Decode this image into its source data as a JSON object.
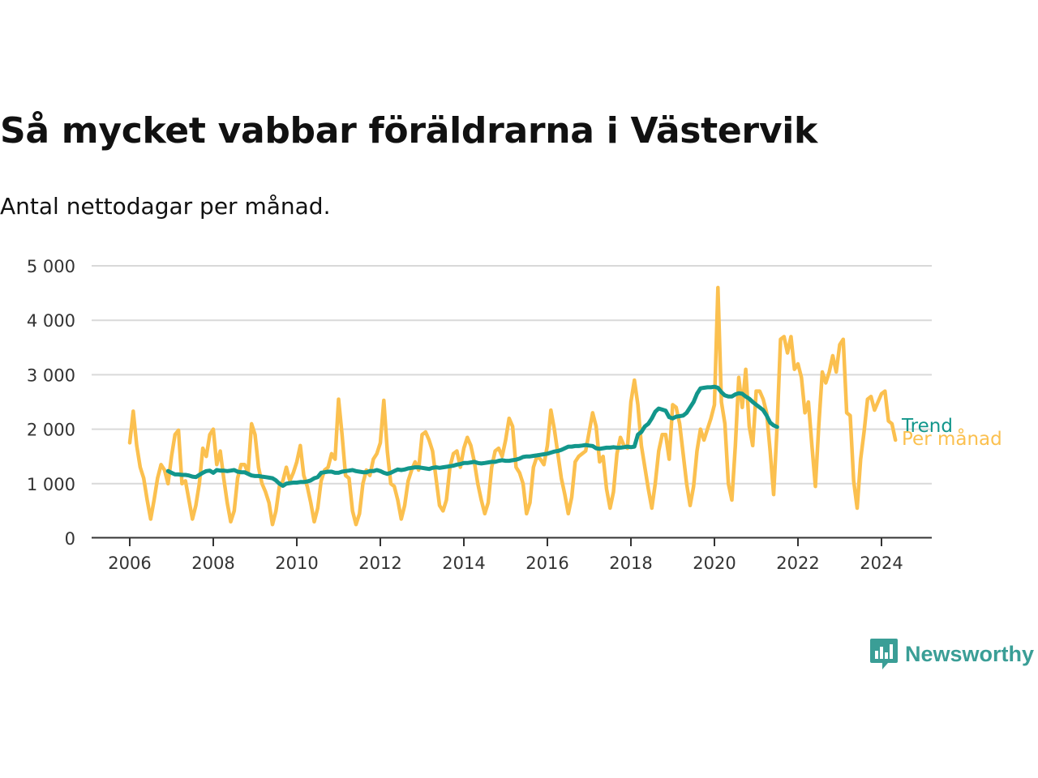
{
  "title": "Så mycket vabbar föräldrarna i Västervik",
  "subtitle": "Antal nettodagar per månad.",
  "logo": {
    "text": "Newsworthy",
    "color": "#3a9e96"
  },
  "colors": {
    "per_month": "#fbc04f",
    "trend": "#12968b",
    "grid": "#d9d9d9",
    "axis": "#333333"
  },
  "chart_data": {
    "type": "line",
    "xlim": [
      2006.0,
      2024.5
    ],
    "ylim": [
      0,
      5000
    ],
    "y_ticks": [
      0,
      1000,
      2000,
      3000,
      4000,
      5000
    ],
    "y_tick_labels": [
      "0",
      "1 000",
      "2 000",
      "3 000",
      "4 000",
      "5 000"
    ],
    "x_ticks": [
      2006,
      2008,
      2010,
      2012,
      2014,
      2016,
      2018,
      2020,
      2022,
      2024
    ],
    "x_tick_labels": [
      "2006",
      "2008",
      "2010",
      "2012",
      "2014",
      "2016",
      "2018",
      "2020",
      "2022",
      "2024"
    ],
    "grid": true,
    "series": [
      {
        "name": "Per månad",
        "color": "#fbc04f",
        "start_year": 2006,
        "start_month": 1,
        "values": [
          1750,
          2330,
          1700,
          1300,
          1100,
          700,
          350,
          700,
          1100,
          1350,
          1250,
          1000,
          1500,
          1900,
          1980,
          1000,
          1050,
          700,
          350,
          600,
          1000,
          1650,
          1500,
          1900,
          2000,
          1350,
          1600,
          1100,
          650,
          300,
          500,
          1100,
          1350,
          1350,
          1200,
          2100,
          1900,
          1300,
          1000,
          850,
          650,
          250,
          500,
          950,
          1050,
          1300,
          1050,
          1200,
          1400,
          1700,
          1150,
          950,
          650,
          300,
          550,
          1050,
          1250,
          1300,
          1550,
          1450,
          2550,
          1900,
          1150,
          1100,
          500,
          250,
          450,
          1000,
          1250,
          1150,
          1450,
          1550,
          1750,
          2530,
          1600,
          1000,
          950,
          700,
          350,
          600,
          1050,
          1250,
          1400,
          1250,
          1900,
          1950,
          1800,
          1600,
          1100,
          600,
          500,
          700,
          1300,
          1550,
          1600,
          1300,
          1650,
          1850,
          1700,
          1400,
          1000,
          700,
          450,
          650,
          1300,
          1600,
          1650,
          1500,
          1800,
          2200,
          2050,
          1300,
          1200,
          1000,
          450,
          650,
          1300,
          1500,
          1450,
          1350,
          1700,
          2350,
          2000,
          1550,
          1100,
          800,
          450,
          750,
          1400,
          1500,
          1550,
          1600,
          1950,
          2300,
          2050,
          1400,
          1500,
          900,
          550,
          850,
          1550,
          1850,
          1700,
          1650,
          2500,
          2900,
          2450,
          1700,
          1300,
          900,
          550,
          1000,
          1600,
          1900,
          1900,
          1450,
          2450,
          2400,
          2100,
          1550,
          1000,
          600,
          950,
          1600,
          2000,
          1800,
          2000,
          2200,
          2450,
          4600,
          2500,
          2100,
          1000,
          700,
          1700,
          2950,
          2400,
          3100,
          2050,
          1700,
          2700,
          2700,
          2550,
          2300,
          1600,
          800,
          2050,
          3650,
          3700,
          3400,
          3700,
          3100,
          3200,
          2950,
          2300,
          2500,
          1700,
          950,
          2100,
          3050,
          2850,
          3050,
          3350,
          3050,
          3550,
          3650,
          2300,
          2250,
          1050,
          550,
          1450,
          1950,
          2550,
          2600,
          2350,
          2500,
          2650,
          2700,
          2150,
          2100,
          1800
        ]
      },
      {
        "name": "Trend",
        "color": "#12968b",
        "start_year": 2006,
        "start_month": 12,
        "values": [
          1230,
          1200,
          1170,
          1170,
          1160,
          1160,
          1150,
          1130,
          1120,
          1160,
          1200,
          1230,
          1240,
          1200,
          1250,
          1240,
          1240,
          1230,
          1240,
          1250,
          1220,
          1210,
          1210,
          1180,
          1150,
          1140,
          1140,
          1130,
          1120,
          1110,
          1100,
          1060,
          1000,
          960,
          1000,
          1010,
          1020,
          1020,
          1030,
          1030,
          1040,
          1060,
          1100,
          1120,
          1200,
          1210,
          1220,
          1220,
          1200,
          1200,
          1220,
          1230,
          1240,
          1250,
          1230,
          1220,
          1210,
          1210,
          1230,
          1230,
          1250,
          1230,
          1200,
          1180,
          1200,
          1230,
          1260,
          1250,
          1260,
          1280,
          1290,
          1300,
          1300,
          1290,
          1280,
          1270,
          1290,
          1300,
          1290,
          1300,
          1310,
          1320,
          1330,
          1350,
          1360,
          1380,
          1380,
          1390,
          1400,
          1380,
          1370,
          1380,
          1390,
          1400,
          1400,
          1420,
          1430,
          1420,
          1420,
          1430,
          1440,
          1460,
          1490,
          1500,
          1500,
          1510,
          1520,
          1530,
          1540,
          1550,
          1570,
          1590,
          1600,
          1620,
          1650,
          1680,
          1680,
          1690,
          1690,
          1700,
          1710,
          1700,
          1690,
          1650,
          1640,
          1650,
          1660,
          1660,
          1670,
          1660,
          1660,
          1670,
          1680,
          1670,
          1680,
          1900,
          1950,
          2050,
          2100,
          2200,
          2320,
          2380,
          2360,
          2340,
          2220,
          2200,
          2230,
          2240,
          2250,
          2300,
          2400,
          2500,
          2650,
          2750,
          2760,
          2770,
          2770,
          2780,
          2760,
          2680,
          2620,
          2600,
          2600,
          2640,
          2660,
          2650,
          2600,
          2560,
          2500,
          2450,
          2400,
          2350,
          2250,
          2120,
          2070,
          2040
        ]
      }
    ]
  }
}
